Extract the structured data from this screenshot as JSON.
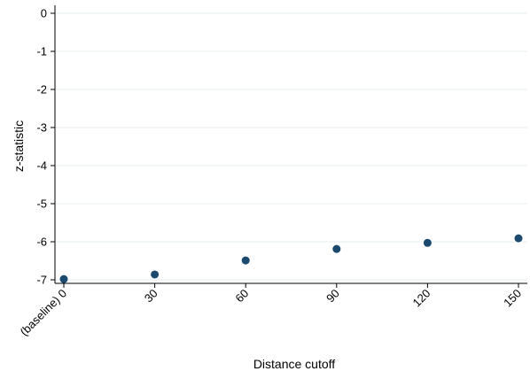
{
  "chart_data": {
    "type": "scatter",
    "title": "",
    "xlabel": "Distance cutoff",
    "ylabel": "z-statistic",
    "x": [
      0,
      30,
      60,
      90,
      120,
      150
    ],
    "x_tick_labels": [
      "(baseline) 0",
      "30",
      "60",
      "90",
      "120",
      "150"
    ],
    "y_ticks": [
      0,
      -1,
      -2,
      -3,
      -4,
      -5,
      -6,
      -7
    ],
    "y_tick_labels": [
      "0",
      "-1",
      "-2",
      "-3",
      "-4",
      "-5",
      "-6",
      "-7"
    ],
    "xlim": [
      0,
      150
    ],
    "ylim": [
      -7.1,
      0
    ],
    "grid": "horizontal",
    "series": [
      {
        "values": [
          -6.98,
          -6.86,
          -6.49,
          -6.19,
          -6.03,
          -5.91
        ]
      }
    ],
    "colors": {
      "marker": "#1b4a6e",
      "grid": "#e6ecef",
      "axis": "#000000"
    }
  }
}
